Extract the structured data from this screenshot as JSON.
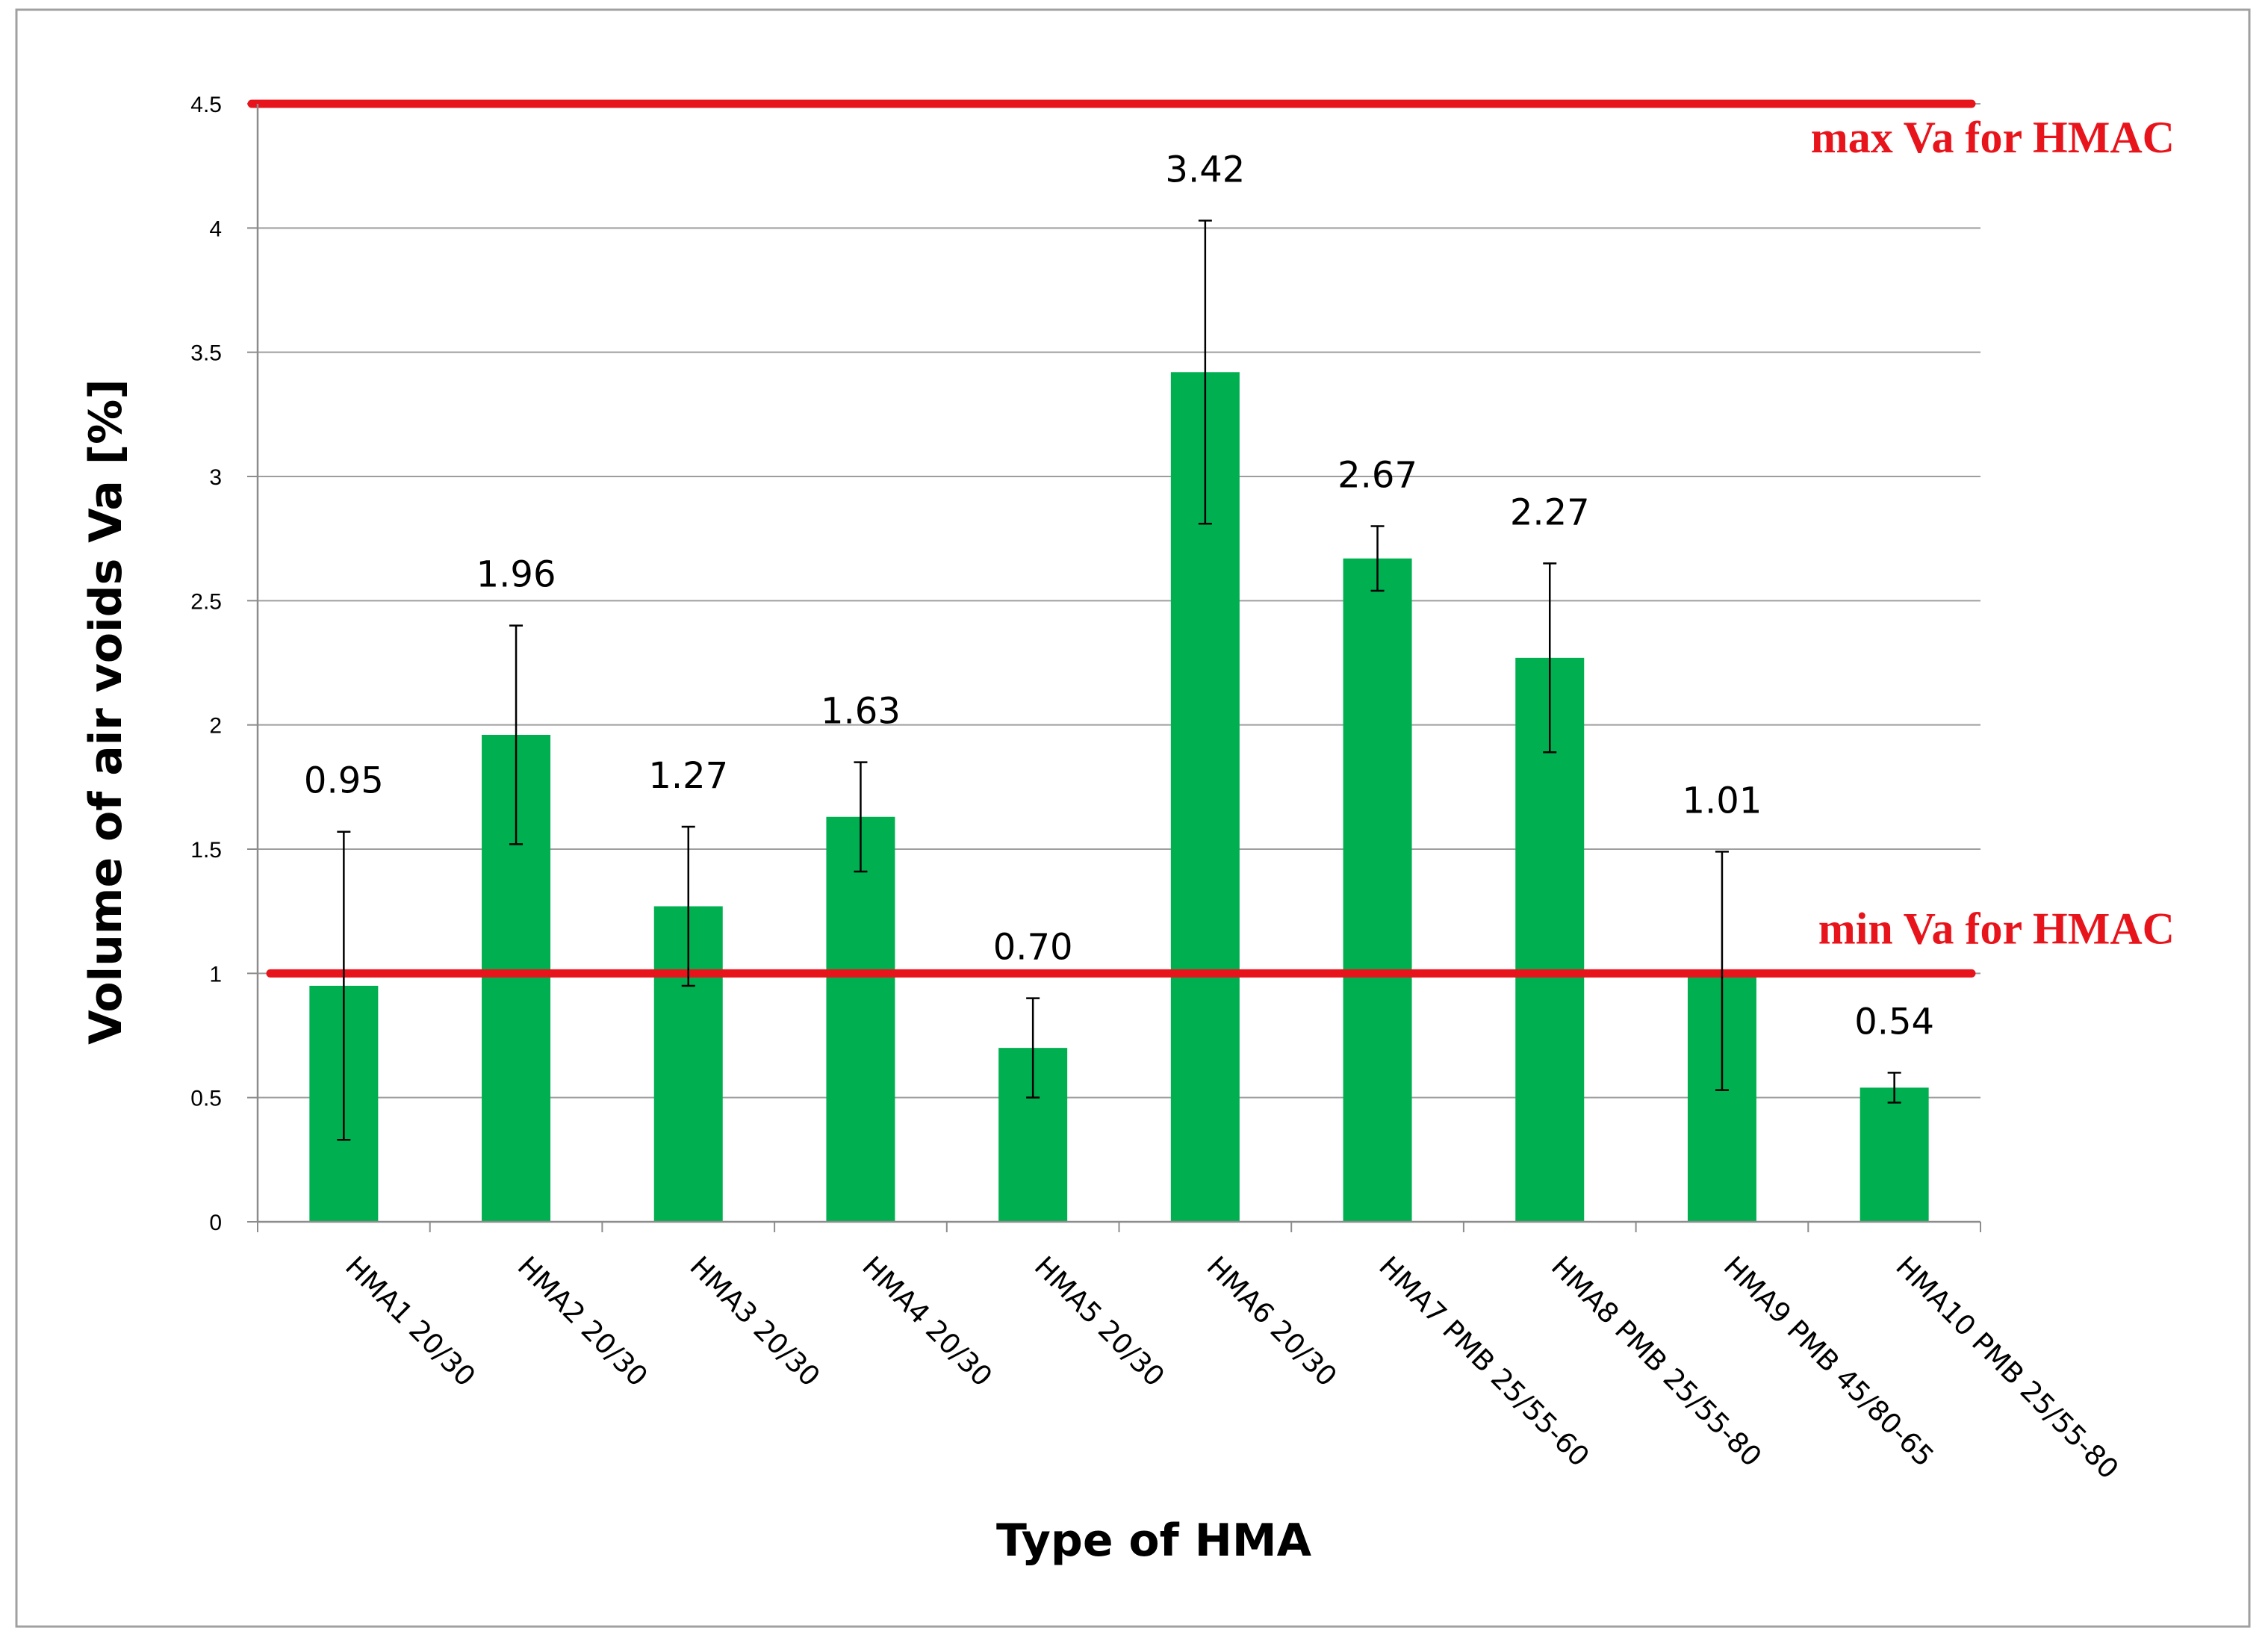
{
  "colors": {
    "bar": "#00b050",
    "reference_line": "#e8141c",
    "gridline": "#9e9e9e",
    "axis": "#8c8c8c",
    "frame": "#a0a0a0"
  },
  "chart_data": {
    "type": "bar",
    "title": "",
    "xlabel": "Type of HMA",
    "ylabel": "Volume of air voids Va  [%]",
    "ylim": [
      0,
      4.5
    ],
    "yticks": [
      0,
      0.5,
      1,
      1.5,
      2,
      2.5,
      3,
      3.5,
      4,
      4.5
    ],
    "ytick_labels": [
      "0",
      "0.5",
      "1",
      "1.5",
      "2",
      "2.5",
      "3",
      "3.5",
      "4",
      "4.5"
    ],
    "grid": true,
    "categories": [
      "HMA1 20/30",
      "HMA2 20/30",
      "HMA3 20/30",
      "HMA4 20/30",
      "HMA5 20/30",
      "HMA6 20/30",
      "HMA7 PMB 25/55-60",
      "HMA8 PMB 25/55-80",
      "HMA9 PMB 45/80-65",
      "HMA10 PMB 25/55-80"
    ],
    "values": [
      0.95,
      1.96,
      1.27,
      1.63,
      0.7,
      3.42,
      2.67,
      2.27,
      1.01,
      0.54
    ],
    "value_labels": [
      "0.95",
      "1.96",
      "1.27",
      "1.63",
      "0.70",
      "3.42",
      "2.67",
      "2.27",
      "1.01",
      "0.54"
    ],
    "error_low": [
      0.33,
      1.52,
      0.95,
      1.41,
      0.5,
      2.81,
      2.54,
      1.89,
      0.53,
      0.48
    ],
    "error_high": [
      1.57,
      2.4,
      1.59,
      1.85,
      0.9,
      4.03,
      2.8,
      2.65,
      1.49,
      0.6
    ],
    "reference_lines": [
      {
        "name": "max",
        "value": 4.5,
        "label": "max Va for HMAC"
      },
      {
        "name": "min",
        "value": 1.0,
        "label": "min Va for HMAC"
      }
    ]
  }
}
